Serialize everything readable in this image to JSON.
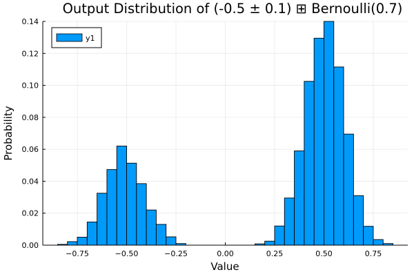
{
  "chart_data": {
    "type": "bar",
    "title": "Output Distribution of (-0.5 ± 0.1) ⊞ Bernoulli(0.7)",
    "xlabel": "Value",
    "ylabel": "Probability",
    "xlim": [
      -0.925,
      0.925
    ],
    "ylim": [
      0,
      0.14
    ],
    "grid": true,
    "legend_position": "top-left",
    "bin_width": 0.05,
    "x_ticks": [
      -0.75,
      -0.5,
      -0.25,
      0.0,
      0.25,
      0.5,
      0.75
    ],
    "x_tick_labels": [
      "−0.75",
      "−0.50",
      "−0.25",
      "0.00",
      "0.25",
      "0.50",
      "0.75"
    ],
    "y_ticks": [
      0,
      0.02,
      0.04,
      0.06,
      0.08,
      0.1,
      0.12,
      0.14
    ],
    "y_tick_labels": [
      "0.00",
      "0.02",
      "0.04",
      "0.06",
      "0.08",
      "0.10",
      "0.12",
      "0.14"
    ],
    "series": [
      {
        "name": "y1",
        "color": "#009AFA",
        "bins": [
          {
            "x0": -0.85,
            "x1": -0.8,
            "value": 0.0005
          },
          {
            "x0": -0.8,
            "x1": -0.75,
            "value": 0.0022
          },
          {
            "x0": -0.75,
            "x1": -0.7,
            "value": 0.005
          },
          {
            "x0": -0.7,
            "x1": -0.65,
            "value": 0.0145
          },
          {
            "x0": -0.65,
            "x1": -0.6,
            "value": 0.0325
          },
          {
            "x0": -0.6,
            "x1": -0.55,
            "value": 0.0473
          },
          {
            "x0": -0.55,
            "x1": -0.5,
            "value": 0.062
          },
          {
            "x0": -0.5,
            "x1": -0.45,
            "value": 0.0513
          },
          {
            "x0": -0.45,
            "x1": -0.4,
            "value": 0.0385
          },
          {
            "x0": -0.4,
            "x1": -0.35,
            "value": 0.022
          },
          {
            "x0": -0.35,
            "x1": -0.3,
            "value": 0.013
          },
          {
            "x0": -0.3,
            "x1": -0.25,
            "value": 0.0052
          },
          {
            "x0": -0.25,
            "x1": -0.2,
            "value": 0.001
          },
          {
            "x0": 0.15,
            "x1": 0.2,
            "value": 0.0008
          },
          {
            "x0": 0.2,
            "x1": 0.25,
            "value": 0.0025
          },
          {
            "x0": 0.25,
            "x1": 0.3,
            "value": 0.012
          },
          {
            "x0": 0.3,
            "x1": 0.35,
            "value": 0.0295
          },
          {
            "x0": 0.35,
            "x1": 0.4,
            "value": 0.059
          },
          {
            "x0": 0.4,
            "x1": 0.45,
            "value": 0.1025
          },
          {
            "x0": 0.45,
            "x1": 0.5,
            "value": 0.1295
          },
          {
            "x0": 0.5,
            "x1": 0.55,
            "value": 0.14
          },
          {
            "x0": 0.55,
            "x1": 0.6,
            "value": 0.1115
          },
          {
            "x0": 0.6,
            "x1": 0.65,
            "value": 0.0695
          },
          {
            "x0": 0.65,
            "x1": 0.7,
            "value": 0.031
          },
          {
            "x0": 0.7,
            "x1": 0.75,
            "value": 0.0118
          },
          {
            "x0": 0.75,
            "x1": 0.8,
            "value": 0.0035
          },
          {
            "x0": 0.8,
            "x1": 0.85,
            "value": 0.001
          }
        ]
      }
    ]
  }
}
